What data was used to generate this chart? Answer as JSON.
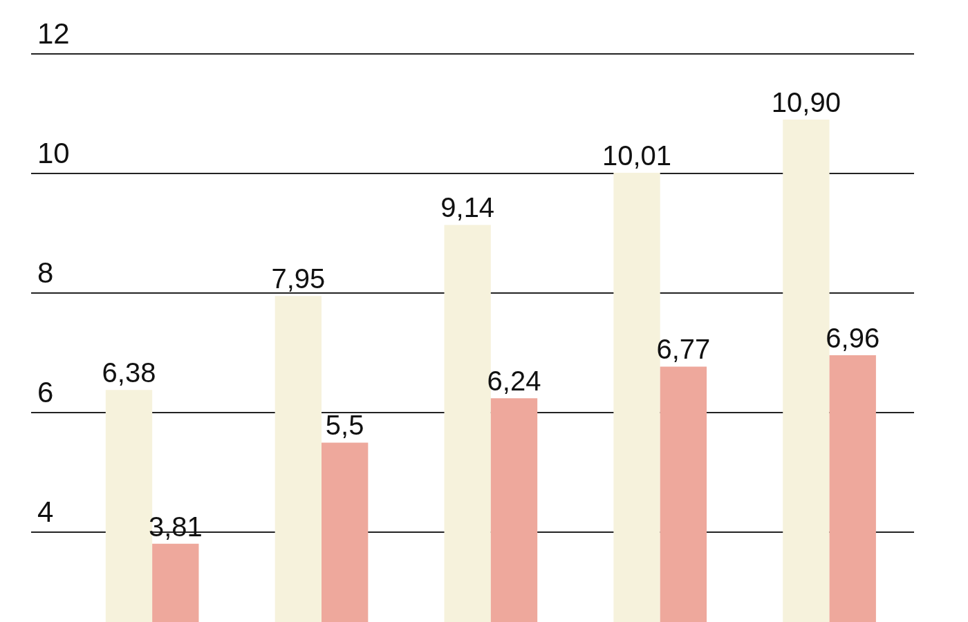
{
  "chart_data": {
    "type": "bar",
    "categories": [
      null,
      null,
      null,
      null,
      null
    ],
    "series": [
      {
        "color": "#f6f2dc",
        "values": [
          6.38,
          7.95,
          9.14,
          10.01,
          10.9
        ],
        "value_labels": [
          "6,38",
          "7,95",
          "9,14",
          "10,01",
          "10,90"
        ]
      },
      {
        "color": "#eea89c",
        "values": [
          3.81,
          5.5,
          6.24,
          6.77,
          6.96
        ],
        "value_labels": [
          "3,81",
          "5,5",
          "6,24",
          "6,77",
          "6,96"
        ]
      }
    ],
    "ylim": [
      2.5,
      12.9
    ],
    "yticks": [
      4,
      6,
      8,
      10,
      12
    ],
    "grid": "y",
    "tick_labels": "y",
    "legend": false
  }
}
